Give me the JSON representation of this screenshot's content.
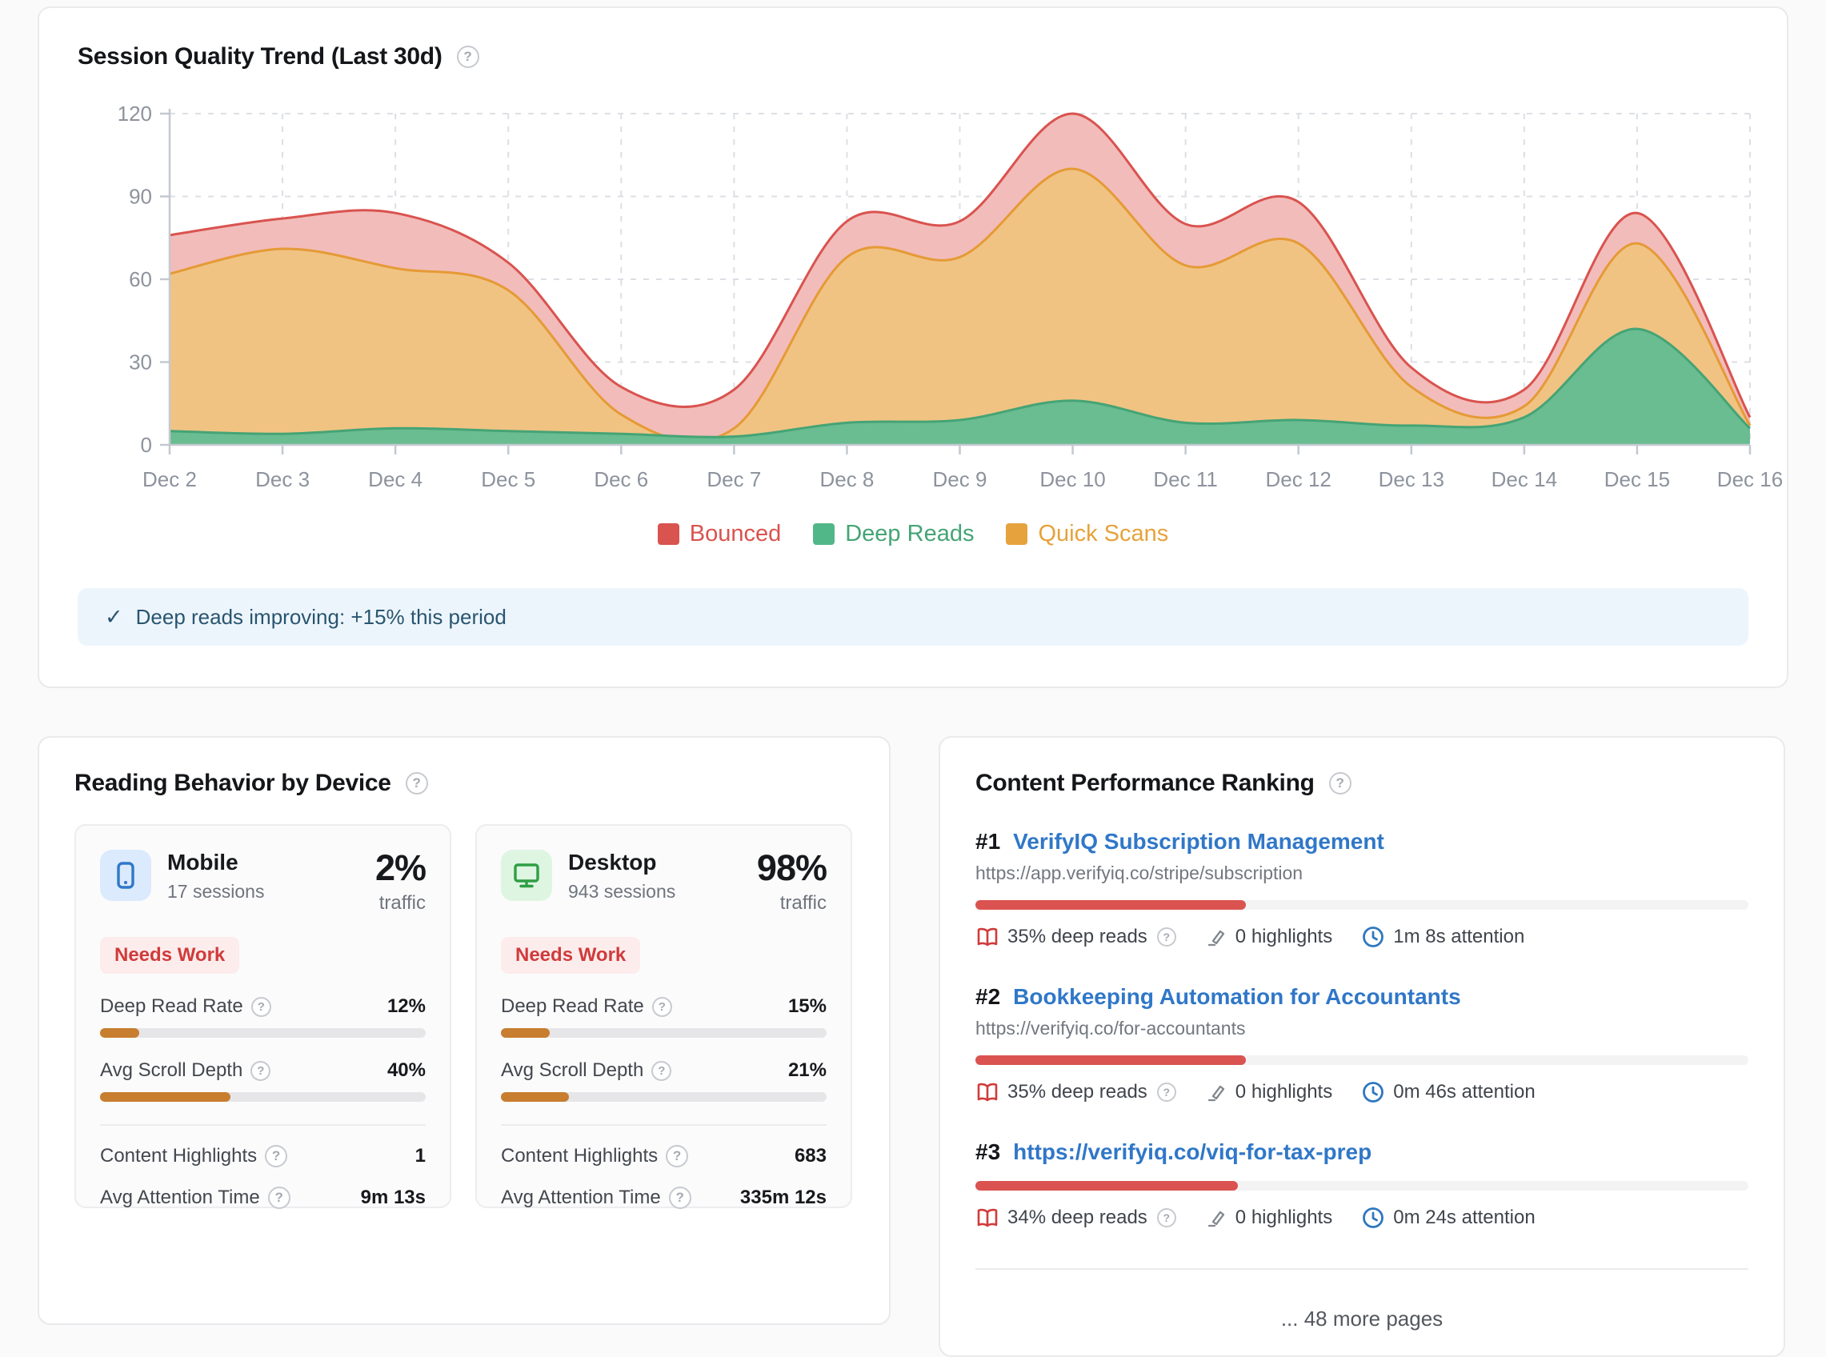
{
  "trend_card": {
    "title": "Session Quality Trend (Last 30d)",
    "help_glyph": "?",
    "insight_icon": "✓",
    "insight_text": "Deep reads improving: +15% this period"
  },
  "chart_data": {
    "type": "area",
    "stacked": true,
    "title": "Session Quality Trend (Last 30d)",
    "x": [
      "Dec 2",
      "Dec 3",
      "Dec 4",
      "Dec 5",
      "Dec 6",
      "Dec 7",
      "Dec 8",
      "Dec 9",
      "Dec 10",
      "Dec 11",
      "Dec 12",
      "Dec 13",
      "Dec 14",
      "Dec 15",
      "Dec 16"
    ],
    "series": [
      {
        "name": "Deep Reads",
        "values": [
          5,
          4,
          6,
          5,
          4,
          3,
          8,
          9,
          16,
          8,
          9,
          7,
          10,
          42,
          6
        ],
        "fill": "#6abc91",
        "stroke": "#45a475"
      },
      {
        "name": "Quick Scans",
        "values": [
          57,
          67,
          58,
          51,
          7,
          3,
          60,
          59,
          84,
          57,
          64,
          14,
          4,
          31,
          1
        ],
        "fill": "#f0c383",
        "stroke": "#e59a35"
      },
      {
        "name": "Bounced",
        "values": [
          14,
          11,
          20,
          10,
          10,
          14,
          13,
          13,
          20,
          15,
          15,
          7,
          6,
          11,
          3
        ],
        "fill": "#f2bcba",
        "stroke": "#d9534f"
      }
    ],
    "stacked_totals": [
      76,
      82,
      84,
      66,
      21,
      20,
      81,
      81,
      120,
      80,
      88,
      28,
      20,
      84,
      10
    ],
    "ylim": [
      0,
      120
    ],
    "yticks": [
      0,
      30,
      60,
      90,
      120
    ],
    "grid": true,
    "legend_position": "bottom",
    "legend": [
      {
        "name": "Bounced",
        "swatch": "#d9534f",
        "text_color": "#d9534f"
      },
      {
        "name": "Deep Reads",
        "swatch": "#52b788",
        "text_color": "#45a475"
      },
      {
        "name": "Quick Scans",
        "swatch": "#e6a23c",
        "text_color": "#e6a23c"
      }
    ]
  },
  "devices_card": {
    "title": "Reading Behavior by Device",
    "help_glyph": "?",
    "devices": [
      {
        "icon": "mobile-icon",
        "name": "Mobile",
        "sessions": "17 sessions",
        "traffic_pct": "2%",
        "traffic_label": "traffic",
        "badge": "Needs Work",
        "deep_read_label": "Deep Read Rate",
        "deep_read_value": "12%",
        "deep_read_pct": 12,
        "scroll_label": "Avg Scroll Depth",
        "scroll_value": "40%",
        "scroll_pct": 40,
        "highlights_label": "Content Highlights",
        "highlights_value": "1",
        "attention_label": "Avg Attention Time",
        "attention_value": "9m 13s"
      },
      {
        "icon": "desktop-icon",
        "name": "Desktop",
        "sessions": "943 sessions",
        "traffic_pct": "98%",
        "traffic_label": "traffic",
        "badge": "Needs Work",
        "deep_read_label": "Deep Read Rate",
        "deep_read_value": "15%",
        "deep_read_pct": 15,
        "scroll_label": "Avg Scroll Depth",
        "scroll_value": "21%",
        "scroll_pct": 21,
        "highlights_label": "Content Highlights",
        "highlights_value": "683",
        "attention_label": "Avg Attention Time",
        "attention_value": "335m 12s"
      }
    ]
  },
  "ranking_card": {
    "title": "Content Performance Ranking",
    "help_glyph": "?",
    "entries": [
      {
        "rank": "#1",
        "title": "VerifyIQ Subscription Management",
        "url": "https://app.verifyiq.co/stripe/subscription",
        "bar_pct": 35,
        "deep_reads": "35% deep reads",
        "highlights": "0 highlights",
        "attention": "1m 8s attention"
      },
      {
        "rank": "#2",
        "title": "Bookkeeping Automation for Accountants",
        "url": "https://verifyiq.co/for-accountants",
        "bar_pct": 35,
        "deep_reads": "35% deep reads",
        "highlights": "0 highlights",
        "attention": "0m 46s attention"
      },
      {
        "rank": "#3",
        "title": "https://verifyiq.co/viq-for-tax-prep",
        "url": "",
        "bar_pct": 34,
        "deep_reads": "34% deep reads",
        "highlights": "0 highlights",
        "attention": "0m 24s attention"
      }
    ],
    "more_text": "... 48 more pages"
  }
}
